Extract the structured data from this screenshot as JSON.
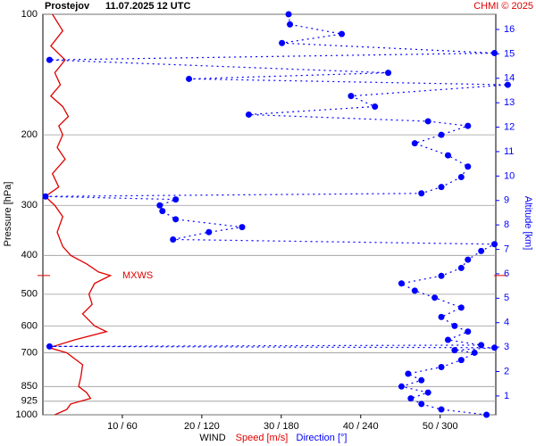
{
  "chart_data": {
    "type": "line",
    "title": "Prostejov",
    "subtitle": "11.07.2025 12 UTC",
    "credit": "CHMI © 2025",
    "ylabel": "Pressure [hPa]",
    "y2label": "Altitude [km]",
    "xlabel": "WIND",
    "ylog": true,
    "ylim": [
      1000,
      100
    ],
    "yticks": [
      100,
      200,
      300,
      400,
      500,
      600,
      700,
      850,
      925,
      1000
    ],
    "y2lim": [
      0.23,
      16.62
    ],
    "y2ticks": [
      1,
      2,
      3,
      4,
      5,
      6,
      7,
      8,
      9,
      10,
      11,
      12,
      13,
      14,
      15,
      16
    ],
    "xlim": [
      0,
      57
    ],
    "x2lim": [
      0,
      341
    ],
    "xticks": [
      {
        "value": 10,
        "label": "10 / 60"
      },
      {
        "value": 20,
        "label": "20 / 120"
      },
      {
        "value": 30,
        "label": "30 / 180"
      },
      {
        "value": 40,
        "label": "40 / 240"
      },
      {
        "value": 50,
        "label": "50 / 300"
      }
    ],
    "grid": true,
    "annotation": {
      "text": "MXWS",
      "y": 449
    },
    "series": [
      {
        "name": "Speed [m/s]",
        "color": "#e00000",
        "y": [
          100,
          110,
          120,
          130,
          140,
          150,
          160,
          170,
          180,
          190,
          200,
          215,
          230,
          250,
          270,
          285,
          300,
          320,
          350,
          380,
          400,
          420,
          440,
          449,
          470,
          500,
          530,
          560,
          600,
          620,
          650,
          680,
          700,
          750,
          800,
          850,
          880,
          910,
          940,
          970,
          1000
        ],
        "x": [
          1.2,
          2.5,
          1.0,
          2.8,
          1.5,
          2.2,
          1.0,
          2.5,
          3.2,
          2.0,
          2.5,
          1.8,
          2.8,
          1.2,
          2.0,
          0.3,
          1.5,
          2.5,
          1.8,
          2.5,
          3.5,
          5.5,
          7.0,
          8.5,
          6.5,
          5.8,
          6.2,
          5.0,
          6.5,
          8.0,
          4.0,
          0.8,
          3.0,
          5.0,
          4.8,
          4.5,
          5.5,
          6.0,
          3.5,
          3.0,
          1.5
        ]
      },
      {
        "name": "Direction [°]",
        "color": "#0000ff",
        "axis": "x2",
        "y": [
          1000,
          970,
          940,
          910,
          880,
          850,
          820,
          790,
          760,
          730,
          700,
          690,
          680,
          675,
          670,
          650,
          620,
          600,
          570,
          540,
          510,
          490,
          470,
          450,
          430,
          410,
          390,
          375,
          365,
          350,
          340,
          325,
          310,
          300,
          290,
          285,
          280,
          270,
          255,
          240,
          225,
          210,
          200,
          190,
          185,
          178,
          170,
          160,
          150,
          145,
          140,
          130,
          125,
          118,
          112,
          106,
          100
        ],
        "x": [
          334,
          300,
          285,
          277,
          290,
          270,
          285,
          275,
          300,
          315,
          325,
          310,
          340,
          5,
          330,
          305,
          320,
          310,
          300,
          315,
          295,
          280,
          270,
          300,
          315,
          320,
          330,
          340,
          98,
          125,
          150,
          100,
          90,
          88,
          100,
          2,
          285,
          300,
          315,
          320,
          305,
          280,
          300,
          320,
          290,
          155,
          250,
          232,
          350,
          110,
          260,
          5,
          340,
          180,
          225,
          186,
          185
        ]
      }
    ]
  }
}
